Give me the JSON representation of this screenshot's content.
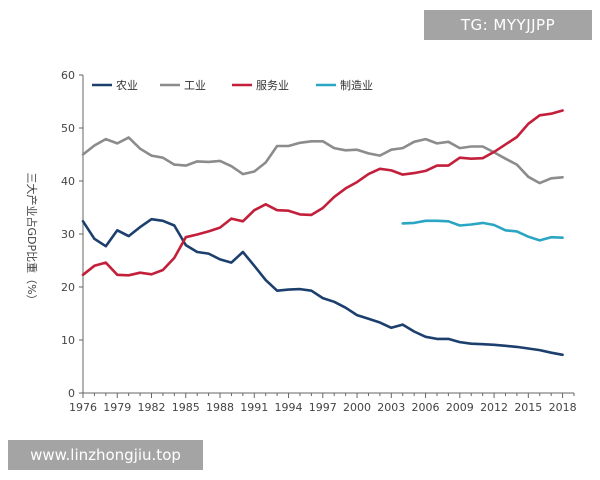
{
  "watermarks": {
    "top_right": "TG: MYYJJPP",
    "bottom_left": "www.linzhongjiu.top"
  },
  "chart_data": {
    "type": "line",
    "title": "",
    "xlabel": "",
    "ylabel": "三大产业占GDP比重（%）",
    "xlim": [
      1976,
      2019
    ],
    "ylim": [
      0,
      60
    ],
    "x_ticks": [
      1976,
      1979,
      1982,
      1985,
      1988,
      1991,
      1994,
      1997,
      2000,
      2003,
      2006,
      2009,
      2012,
      2015,
      2018
    ],
    "y_ticks": [
      0,
      10,
      20,
      30,
      40,
      50,
      60
    ],
    "legend_position": "top-left",
    "series": [
      {
        "name": "农业",
        "color": "#1c3f6e",
        "x": [
          1976,
          1977,
          1978,
          1979,
          1980,
          1981,
          1982,
          1983,
          1984,
          1985,
          1986,
          1987,
          1988,
          1989,
          1990,
          1991,
          1992,
          1993,
          1994,
          1995,
          1996,
          1997,
          1998,
          1999,
          2000,
          2001,
          2002,
          2003,
          2004,
          2005,
          2006,
          2007,
          2008,
          2009,
          2010,
          2011,
          2012,
          2013,
          2014,
          2015,
          2016,
          2017,
          2018
        ],
        "y": [
          32.4,
          29.1,
          27.7,
          30.7,
          29.6,
          31.3,
          32.8,
          32.5,
          31.6,
          27.9,
          26.6,
          26.3,
          25.2,
          24.6,
          26.6,
          24.0,
          21.3,
          19.3,
          19.5,
          19.6,
          19.3,
          17.9,
          17.2,
          16.1,
          14.7,
          14.0,
          13.3,
          12.3,
          12.9,
          11.6,
          10.6,
          10.2,
          10.2,
          9.6,
          9.3,
          9.2,
          9.1,
          8.9,
          8.7,
          8.4,
          8.1,
          7.6,
          7.2
        ]
      },
      {
        "name": "工业",
        "color": "#8c8c8c",
        "x": [
          1976,
          1977,
          1978,
          1979,
          1980,
          1981,
          1982,
          1983,
          1984,
          1985,
          1986,
          1987,
          1988,
          1989,
          1990,
          1991,
          1992,
          1993,
          1994,
          1995,
          1996,
          1997,
          1998,
          1999,
          2000,
          2001,
          2002,
          2003,
          2004,
          2005,
          2006,
          2007,
          2008,
          2009,
          2010,
          2011,
          2012,
          2013,
          2014,
          2015,
          2016,
          2017,
          2018
        ],
        "y": [
          45.0,
          46.7,
          47.9,
          47.1,
          48.2,
          46.1,
          44.8,
          44.4,
          43.1,
          42.9,
          43.7,
          43.6,
          43.8,
          42.8,
          41.3,
          41.8,
          43.5,
          46.6,
          46.6,
          47.2,
          47.5,
          47.5,
          46.2,
          45.8,
          45.9,
          45.2,
          44.8,
          45.9,
          46.2,
          47.4,
          47.9,
          47.1,
          47.4,
          46.2,
          46.5,
          46.5,
          45.4,
          44.2,
          43.1,
          40.8,
          39.6,
          40.5,
          40.7
        ]
      },
      {
        "name": "服务业",
        "color": "#c41f3a",
        "x": [
          1976,
          1977,
          1978,
          1979,
          1980,
          1981,
          1982,
          1983,
          1984,
          1985,
          1986,
          1987,
          1988,
          1989,
          1990,
          1991,
          1992,
          1993,
          1994,
          1995,
          1996,
          1997,
          1998,
          1999,
          2000,
          2001,
          2002,
          2003,
          2004,
          2005,
          2006,
          2007,
          2008,
          2009,
          2010,
          2011,
          2012,
          2013,
          2014,
          2015,
          2016,
          2017,
          2018
        ],
        "y": [
          22.3,
          24.0,
          24.6,
          22.3,
          22.2,
          22.7,
          22.4,
          23.2,
          25.5,
          29.4,
          29.9,
          30.5,
          31.2,
          32.9,
          32.4,
          34.5,
          35.6,
          34.5,
          34.4,
          33.7,
          33.6,
          34.9,
          37.0,
          38.6,
          39.8,
          41.3,
          42.3,
          42.0,
          41.2,
          41.5,
          41.9,
          42.9,
          42.9,
          44.4,
          44.2,
          44.3,
          45.5,
          46.9,
          48.3,
          50.8,
          52.4,
          52.7,
          53.3
        ]
      },
      {
        "name": "制造业",
        "color": "#2aa6c4",
        "x": [
          2004,
          2005,
          2006,
          2007,
          2008,
          2009,
          2010,
          2011,
          2012,
          2013,
          2014,
          2015,
          2016,
          2017,
          2018
        ],
        "y": [
          32.0,
          32.1,
          32.5,
          32.5,
          32.4,
          31.6,
          31.8,
          32.1,
          31.7,
          30.7,
          30.5,
          29.5,
          28.8,
          29.4,
          29.3
        ]
      }
    ]
  }
}
